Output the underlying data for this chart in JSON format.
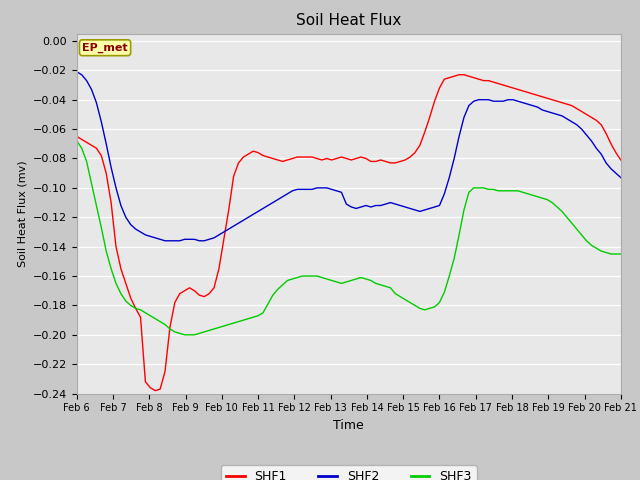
{
  "title": "Soil Heat Flux",
  "xlabel": "Time",
  "ylabel": "Soil Heat Flux (mv)",
  "annotation": "EP_met",
  "ylim": [
    -0.24,
    0.005
  ],
  "yticks": [
    0.0,
    -0.02,
    -0.04,
    -0.06,
    -0.08,
    -0.1,
    -0.12,
    -0.14,
    -0.16,
    -0.18,
    -0.2,
    -0.22,
    -0.24
  ],
  "x_labels": [
    "Feb 6",
    "Feb 7",
    "Feb 8",
    "Feb 9",
    "Feb 10",
    "Feb 11",
    "Feb 12",
    "Feb 13",
    "Feb 14",
    "Feb 15",
    "Feb 16",
    "Feb 17",
    "Feb 18",
    "Feb 19",
    "Feb 20",
    "Feb 21"
  ],
  "colors": {
    "SHF1": "#ff0000",
    "SHF2": "#0000cc",
    "SHF3": "#00cc00",
    "fig_bg": "#c8c8c8",
    "axes_bg": "#e8e8e8",
    "annotation_bg": "#ffffaa",
    "annotation_border": "#999900"
  },
  "SHF1": [
    -0.065,
    -0.067,
    -0.069,
    -0.071,
    -0.073,
    -0.078,
    -0.09,
    -0.11,
    -0.14,
    -0.155,
    -0.165,
    -0.175,
    -0.182,
    -0.188,
    -0.232,
    -0.236,
    -0.238,
    -0.237,
    -0.225,
    -0.195,
    -0.178,
    -0.172,
    -0.17,
    -0.168,
    -0.17,
    -0.173,
    -0.174,
    -0.172,
    -0.168,
    -0.155,
    -0.135,
    -0.115,
    -0.092,
    -0.083,
    -0.079,
    -0.077,
    -0.075,
    -0.076,
    -0.078,
    -0.079,
    -0.08,
    -0.081,
    -0.082,
    -0.081,
    -0.08,
    -0.079,
    -0.079,
    -0.079,
    -0.079,
    -0.08,
    -0.081,
    -0.08,
    -0.081,
    -0.08,
    -0.079,
    -0.08,
    -0.081,
    -0.08,
    -0.079,
    -0.08,
    -0.082,
    -0.082,
    -0.081,
    -0.082,
    -0.083,
    -0.083,
    -0.082,
    -0.081,
    -0.079,
    -0.076,
    -0.071,
    -0.062,
    -0.052,
    -0.041,
    -0.032,
    -0.026,
    -0.025,
    -0.024,
    -0.023,
    -0.023,
    -0.024,
    -0.025,
    -0.026,
    -0.027,
    -0.027,
    -0.028,
    -0.029,
    -0.03,
    -0.031,
    -0.032,
    -0.033,
    -0.034,
    -0.035,
    -0.036,
    -0.037,
    -0.038,
    -0.039,
    -0.04,
    -0.041,
    -0.042,
    -0.043,
    -0.044,
    -0.046,
    -0.048,
    -0.05,
    -0.052,
    -0.054,
    -0.057,
    -0.063,
    -0.07,
    -0.076,
    -0.081
  ],
  "SHF2": [
    -0.021,
    -0.023,
    -0.027,
    -0.033,
    -0.042,
    -0.055,
    -0.07,
    -0.086,
    -0.1,
    -0.112,
    -0.12,
    -0.125,
    -0.128,
    -0.13,
    -0.132,
    -0.133,
    -0.134,
    -0.135,
    -0.136,
    -0.136,
    -0.136,
    -0.136,
    -0.135,
    -0.135,
    -0.135,
    -0.136,
    -0.136,
    -0.135,
    -0.134,
    -0.132,
    -0.13,
    -0.128,
    -0.126,
    -0.124,
    -0.122,
    -0.12,
    -0.118,
    -0.116,
    -0.114,
    -0.112,
    -0.11,
    -0.108,
    -0.106,
    -0.104,
    -0.102,
    -0.101,
    -0.101,
    -0.101,
    -0.101,
    -0.1,
    -0.1,
    -0.1,
    -0.101,
    -0.102,
    -0.103,
    -0.111,
    -0.113,
    -0.114,
    -0.113,
    -0.112,
    -0.113,
    -0.112,
    -0.112,
    -0.111,
    -0.11,
    -0.111,
    -0.112,
    -0.113,
    -0.114,
    -0.115,
    -0.116,
    -0.115,
    -0.114,
    -0.113,
    -0.112,
    -0.104,
    -0.093,
    -0.08,
    -0.065,
    -0.052,
    -0.044,
    -0.041,
    -0.04,
    -0.04,
    -0.04,
    -0.041,
    -0.041,
    -0.041,
    -0.04,
    -0.04,
    -0.041,
    -0.042,
    -0.043,
    -0.044,
    -0.045,
    -0.047,
    -0.048,
    -0.049,
    -0.05,
    -0.051,
    -0.053,
    -0.055,
    -0.057,
    -0.06,
    -0.064,
    -0.068,
    -0.073,
    -0.077,
    -0.083,
    -0.087,
    -0.09,
    -0.093
  ],
  "SHF3": [
    -0.068,
    -0.073,
    -0.082,
    -0.097,
    -0.112,
    -0.127,
    -0.143,
    -0.155,
    -0.165,
    -0.172,
    -0.177,
    -0.18,
    -0.182,
    -0.183,
    -0.185,
    -0.187,
    -0.189,
    -0.191,
    -0.193,
    -0.196,
    -0.198,
    -0.199,
    -0.2,
    -0.2,
    -0.2,
    -0.199,
    -0.198,
    -0.197,
    -0.196,
    -0.195,
    -0.194,
    -0.193,
    -0.192,
    -0.191,
    -0.19,
    -0.189,
    -0.188,
    -0.187,
    -0.185,
    -0.179,
    -0.173,
    -0.169,
    -0.166,
    -0.163,
    -0.162,
    -0.161,
    -0.16,
    -0.16,
    -0.16,
    -0.16,
    -0.161,
    -0.162,
    -0.163,
    -0.164,
    -0.165,
    -0.164,
    -0.163,
    -0.162,
    -0.161,
    -0.162,
    -0.163,
    -0.165,
    -0.166,
    -0.167,
    -0.168,
    -0.172,
    -0.174,
    -0.176,
    -0.178,
    -0.18,
    -0.182,
    -0.183,
    -0.182,
    -0.181,
    -0.178,
    -0.171,
    -0.16,
    -0.148,
    -0.132,
    -0.115,
    -0.103,
    -0.1,
    -0.1,
    -0.1,
    -0.101,
    -0.101,
    -0.102,
    -0.102,
    -0.102,
    -0.102,
    -0.102,
    -0.103,
    -0.104,
    -0.105,
    -0.106,
    -0.107,
    -0.108,
    -0.11,
    -0.113,
    -0.116,
    -0.12,
    -0.124,
    -0.128,
    -0.132,
    -0.136,
    -0.139,
    -0.141,
    -0.143,
    -0.144,
    -0.145,
    -0.145,
    -0.145
  ]
}
